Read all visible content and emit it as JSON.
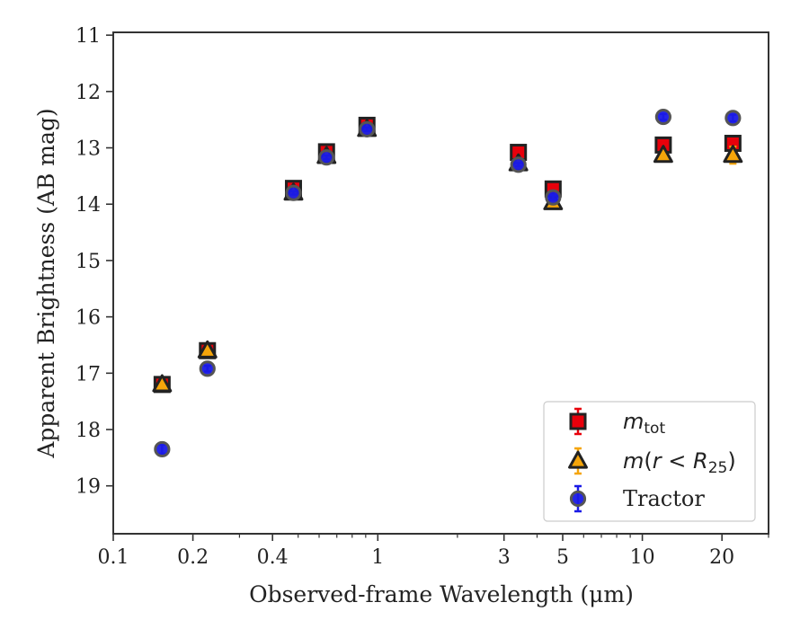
{
  "chart_data": {
    "type": "scatter",
    "xlabel": "Observed-frame Wavelength (μm)",
    "ylabel": "Apparent Brightness (AB mag)",
    "x_scale": "log",
    "xlim": [
      0.1,
      30
    ],
    "ylim": [
      19.85,
      10.95
    ],
    "y_inverted": true,
    "x_ticks": [
      0.1,
      0.2,
      0.4,
      1,
      3,
      5,
      10,
      20
    ],
    "x_tick_labels": [
      "0.1",
      "0.2",
      "0.4",
      "1",
      "3",
      "5",
      "10",
      "20"
    ],
    "y_ticks": [
      11,
      12,
      13,
      14,
      15,
      16,
      17,
      18,
      19
    ],
    "y_tick_labels": [
      "11",
      "12",
      "13",
      "14",
      "15",
      "16",
      "17",
      "18",
      "19"
    ],
    "grid": false,
    "legend_position": "lower-right",
    "series": [
      {
        "name": "m_tot",
        "legend_label": "mtot",
        "marker": "square",
        "color": "#e8000b",
        "x": [
          0.153,
          0.227,
          0.48,
          0.64,
          0.91,
          3.4,
          4.6,
          12.0,
          22.0
        ],
        "y": [
          17.2,
          16.6,
          13.72,
          13.07,
          12.6,
          13.08,
          13.73,
          12.95,
          12.92
        ],
        "yerr": [
          0.05,
          0.05,
          0.03,
          0.03,
          0.03,
          0.03,
          0.05,
          0.04,
          0.05
        ]
      },
      {
        "name": "m(r<R25)",
        "legend_label": "m(r < R25)",
        "marker": "triangle",
        "color": "#f5a50a",
        "x": [
          0.153,
          0.227,
          0.48,
          0.64,
          0.91,
          3.4,
          4.6,
          12.0,
          22.0
        ],
        "y": [
          17.2,
          16.6,
          13.8,
          13.15,
          12.67,
          13.28,
          13.97,
          13.13,
          13.13
        ],
        "yerr": [
          0.05,
          0.05,
          0.03,
          0.03,
          0.03,
          0.03,
          0.05,
          0.08,
          0.15
        ]
      },
      {
        "name": "Tractor",
        "legend_label": "Tractor",
        "marker": "circle",
        "color": "#1a1ae6",
        "x": [
          0.153,
          0.227,
          0.48,
          0.64,
          0.91,
          3.4,
          4.6,
          12.0,
          22.0
        ],
        "y": [
          18.35,
          16.92,
          13.8,
          13.17,
          12.67,
          13.3,
          13.88,
          12.45,
          12.47
        ],
        "yerr": [
          0.08,
          0.05,
          0.03,
          0.03,
          0.03,
          0.03,
          0.04,
          0.05,
          0.06
        ]
      }
    ]
  }
}
